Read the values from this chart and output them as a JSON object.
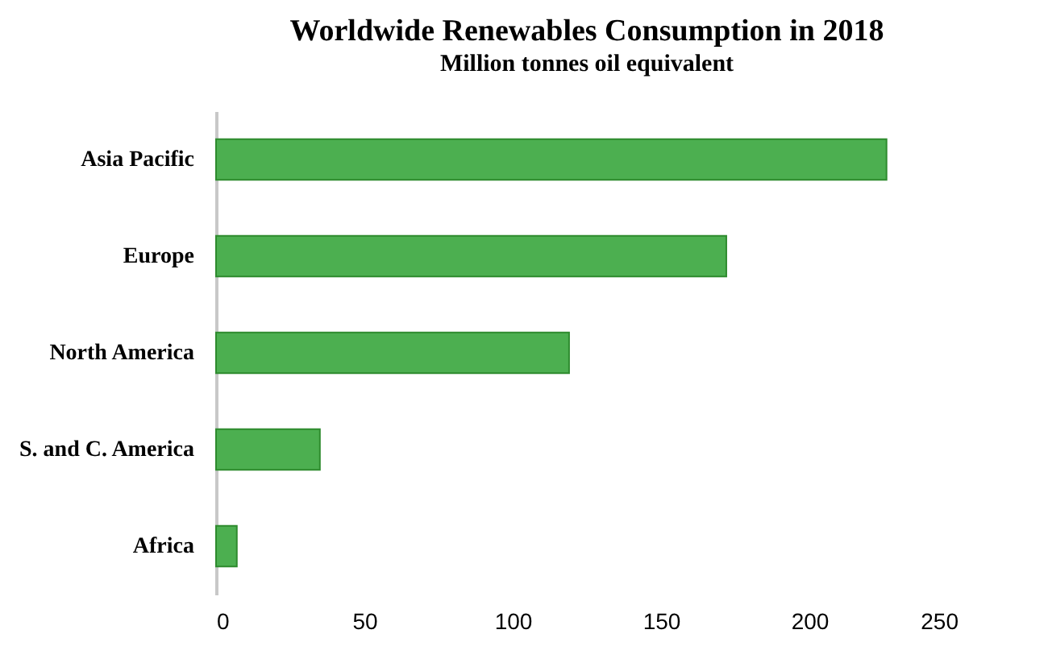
{
  "chart_data": {
    "type": "bar",
    "orientation": "horizontal",
    "title": "Worldwide Renewables Consumption in 2018",
    "subtitle": "Million  tonnes oil equivalent",
    "categories": [
      "Asia Pacific",
      "Europe",
      "North America",
      "S. and C. America",
      "Africa"
    ],
    "values": [
      226,
      172,
      119,
      35,
      7
    ],
    "color": "#4caf50",
    "xlim": [
      0,
      250
    ],
    "xticks": [
      0,
      50,
      100,
      150,
      200,
      250
    ],
    "grid": false
  }
}
